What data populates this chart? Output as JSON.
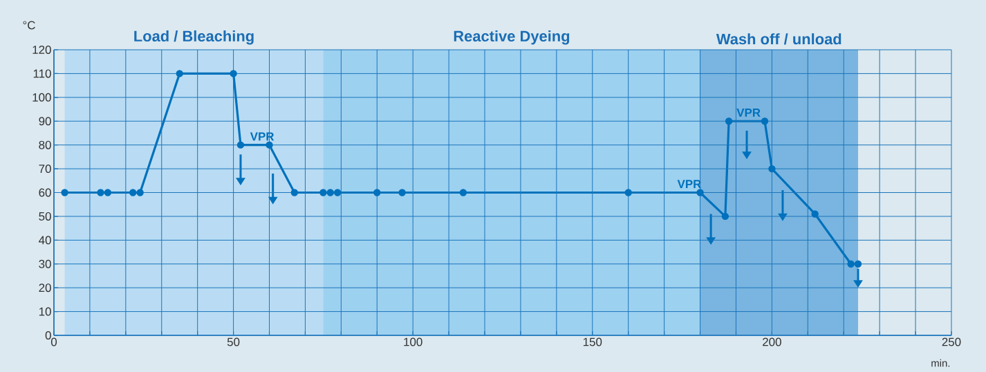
{
  "chart_data": {
    "type": "line",
    "xlabel": "min.",
    "ylabel": "°C",
    "x": [
      3,
      13,
      15,
      22,
      24,
      35,
      50,
      52,
      60,
      67,
      75,
      77,
      79,
      90,
      97,
      114,
      160,
      180,
      187,
      188,
      198,
      200,
      212,
      222,
      224
    ],
    "series": [
      {
        "color": "#0071bc",
        "values": [
          60,
          60,
          60,
          60,
          60,
          110,
          110,
          80,
          80,
          60,
          60,
          60,
          60,
          60,
          60,
          60,
          60,
          60,
          50,
          90,
          90,
          70,
          51,
          30,
          30
        ]
      }
    ],
    "xlim": [
      0,
      250
    ],
    "ylim": [
      0,
      120
    ],
    "xticks": [
      0,
      {
        "value": 10,
        "label": null
      },
      {
        "value": 20,
        "label": null
      },
      {
        "value": 30,
        "label": null
      },
      {
        "value": 40,
        "label": null
      },
      50,
      {
        "value": 60,
        "label": null
      },
      {
        "value": 70,
        "label": null
      },
      {
        "value": 80,
        "label": null
      },
      {
        "value": 90,
        "label": null
      },
      100,
      {
        "value": 110,
        "label": null
      },
      {
        "value": 120,
        "label": null
      },
      {
        "value": 130,
        "label": null
      },
      {
        "value": 140,
        "label": null
      },
      150,
      {
        "value": 160,
        "label": null
      },
      {
        "value": 170,
        "label": null
      },
      {
        "value": 180,
        "label": null
      },
      {
        "value": 190,
        "label": null
      },
      200,
      {
        "value": 210,
        "label": null
      },
      {
        "value": 220,
        "label": null
      },
      {
        "value": 230,
        "label": null
      },
      {
        "value": 240,
        "label": null
      },
      250
    ],
    "yticks": [
      0,
      10,
      20,
      30,
      40,
      50,
      60,
      70,
      80,
      90,
      100,
      110,
      120
    ],
    "grid": true,
    "marker": "circle",
    "line_style": "solid",
    "bands": [
      {
        "axis": "x",
        "from": 3,
        "to": 75,
        "label": "Load / Bleaching",
        "color": "#b9dcf4"
      },
      {
        "axis": "x",
        "from": 75,
        "to": 180,
        "label": "Reactive Dyeing",
        "color": "#9dd1f0"
      },
      {
        "axis": "x",
        "from": 180,
        "to": 224,
        "label": "Wash off / unload",
        "color": "#79b5e0"
      }
    ],
    "annotations": [
      {
        "text": "VPR",
        "x": 58,
        "y": 80
      },
      {
        "text": "VPR",
        "x": 177,
        "y": 60
      },
      {
        "text": "VPR",
        "x": 193.5,
        "y": 90
      }
    ]
  }
}
